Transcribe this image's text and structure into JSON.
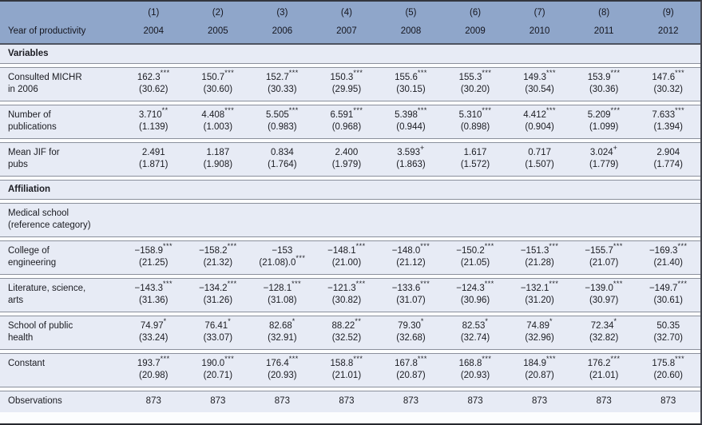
{
  "colors": {
    "header_bg": "#8fa6ca",
    "row_bg": "#e7ebf5",
    "border_dark": "#33363e",
    "separator": "#8b909c",
    "text": "#15161f"
  },
  "header": {
    "numbers": [
      "(1)",
      "(2)",
      "(3)",
      "(4)",
      "(5)",
      "(6)",
      "(7)",
      "(8)",
      "(9)"
    ],
    "label": "Year of productivity",
    "years": [
      "2004",
      "2005",
      "2006",
      "2007",
      "2008",
      "2009",
      "2010",
      "2011",
      "2012"
    ]
  },
  "rows": [
    {
      "type": "section",
      "name": "variables",
      "label": [
        "Variables"
      ]
    },
    {
      "type": "data",
      "name": "consulted-michr-in-2006",
      "label": [
        "Consulted MICHR",
        "in 2006"
      ],
      "cells": [
        [
          "162.3",
          "***",
          "(30.62)",
          ""
        ],
        [
          "150.7",
          "***",
          "(30.60)",
          ""
        ],
        [
          "152.7",
          "***",
          "(30.33)",
          ""
        ],
        [
          "150.3",
          "***",
          "(29.95)",
          ""
        ],
        [
          "155.6",
          "***",
          "(30.15)",
          ""
        ],
        [
          "155.3",
          "***",
          "(30.20)",
          ""
        ],
        [
          "149.3",
          "***",
          "(30.54)",
          ""
        ],
        [
          "153.9",
          "***",
          "(30.36)",
          ""
        ],
        [
          "147.6",
          "***",
          "(30.32)",
          ""
        ]
      ]
    },
    {
      "type": "data",
      "name": "number-of-publications",
      "label": [
        "Number of",
        "publications"
      ],
      "cells": [
        [
          "3.710",
          "**",
          "(1.139)",
          ""
        ],
        [
          "4.408",
          "***",
          "(1.003)",
          ""
        ],
        [
          "5.505",
          "***",
          "(0.983)",
          ""
        ],
        [
          "6.591",
          "***",
          "(0.968)",
          ""
        ],
        [
          "5.398",
          "***",
          "(0.944)",
          ""
        ],
        [
          "5.310",
          "***",
          "(0.898)",
          ""
        ],
        [
          "4.412",
          "***",
          "(0.904)",
          ""
        ],
        [
          "5.209",
          "***",
          "(1.099)",
          ""
        ],
        [
          "7.633",
          "***",
          "(1.394)",
          ""
        ]
      ]
    },
    {
      "type": "data",
      "name": "mean-jif-for-pubs",
      "label": [
        "Mean JIF for",
        "pubs"
      ],
      "cells": [
        [
          "2.491",
          "",
          "(1.871)",
          ""
        ],
        [
          "1.187",
          "",
          "(1.908)",
          ""
        ],
        [
          "0.834",
          "",
          "(1.764)",
          ""
        ],
        [
          "2.400",
          "",
          "(1.979)",
          ""
        ],
        [
          "3.593",
          "+",
          "(1.863)",
          ""
        ],
        [
          "1.617",
          "",
          "(1.572)",
          ""
        ],
        [
          "0.717",
          "",
          "(1.507)",
          ""
        ],
        [
          "3.024",
          "+",
          "(1.779)",
          ""
        ],
        [
          "2.904",
          "",
          "(1.774)",
          ""
        ]
      ]
    },
    {
      "type": "section",
      "name": "affiliation",
      "label": [
        "Affiliation"
      ]
    },
    {
      "type": "data",
      "name": "medical-school-reference",
      "label": [
        "Medical school",
        "(reference category)"
      ],
      "cells": []
    },
    {
      "type": "data",
      "name": "college-of-engineering",
      "label": [
        "College of",
        "engineering"
      ],
      "cells": [
        [
          "−158.9",
          "***",
          "(21.25)",
          ""
        ],
        [
          "−158.2",
          "***",
          "(21.32)",
          ""
        ],
        [
          "−153",
          "",
          "(21.08).0",
          "***"
        ],
        [
          "−148.1",
          "***",
          "(21.00)",
          ""
        ],
        [
          "−148.0",
          "***",
          "(21.12)",
          ""
        ],
        [
          "−150.2",
          "***",
          "(21.05)",
          ""
        ],
        [
          "−151.3",
          "***",
          "(21.28)",
          ""
        ],
        [
          "−155.7",
          "***",
          "(21.07)",
          ""
        ],
        [
          "−169.3",
          "***",
          "(21.40)",
          ""
        ]
      ]
    },
    {
      "type": "data",
      "name": "literature-science-arts",
      "label": [
        "Literature, science,",
        "arts"
      ],
      "cells": [
        [
          "−143.3",
          "***",
          "(31.36)",
          ""
        ],
        [
          "−134.2",
          "***",
          "(31.26)",
          ""
        ],
        [
          "−128.1",
          "***",
          "(31.08)",
          ""
        ],
        [
          "−121.3",
          "***",
          "(30.82)",
          ""
        ],
        [
          "−133.6",
          "***",
          "(31.07)",
          ""
        ],
        [
          "−124.3",
          "***",
          "(30.96)",
          ""
        ],
        [
          "−132.1",
          "***",
          "(31.20)",
          ""
        ],
        [
          "−139.0",
          "***",
          "(30.97)",
          ""
        ],
        [
          "−149.7",
          "***",
          "(30.61)",
          ""
        ]
      ]
    },
    {
      "type": "data",
      "name": "school-of-public-health",
      "label": [
        "School of public",
        "health"
      ],
      "cells": [
        [
          "74.97",
          "*",
          "(33.24)",
          ""
        ],
        [
          "76.41",
          "*",
          "(33.07)",
          ""
        ],
        [
          "82.68",
          "*",
          "(32.91)",
          ""
        ],
        [
          "88.22",
          "**",
          "(32.52)",
          ""
        ],
        [
          "79.30",
          "*",
          "(32.68)",
          ""
        ],
        [
          "82.53",
          "*",
          "(32.74)",
          ""
        ],
        [
          "74.89",
          "*",
          "(32.96)",
          ""
        ],
        [
          "72.34",
          "*",
          "(32.82)",
          ""
        ],
        [
          "50.35",
          "",
          "(32.70)",
          ""
        ]
      ]
    },
    {
      "type": "data",
      "name": "constant",
      "label": [
        "Constant"
      ],
      "cells": [
        [
          "193.7",
          "***",
          "(20.98)",
          ""
        ],
        [
          "190.0",
          "***",
          "(20.71)",
          ""
        ],
        [
          "176.4",
          "***",
          "(20.93)",
          ""
        ],
        [
          "158.8",
          "***",
          "(21.01)",
          ""
        ],
        [
          "167.8",
          "***",
          "(20.87)",
          ""
        ],
        [
          "168.8",
          "***",
          "(20.93)",
          ""
        ],
        [
          "184.9",
          "***",
          "(20.87)",
          ""
        ],
        [
          "176.2",
          "***",
          "(21.01)",
          ""
        ],
        [
          "175.8",
          "***",
          "(20.60)",
          ""
        ]
      ]
    },
    {
      "type": "data",
      "name": "observations",
      "label": [
        "Observations"
      ],
      "cells": [
        [
          "873",
          "",
          "",
          ""
        ],
        [
          "873",
          "",
          "",
          ""
        ],
        [
          "873",
          "",
          "",
          ""
        ],
        [
          "873",
          "",
          "",
          ""
        ],
        [
          "873",
          "",
          "",
          ""
        ],
        [
          "873",
          "",
          "",
          ""
        ],
        [
          "873",
          "",
          "",
          ""
        ],
        [
          "873",
          "",
          "",
          ""
        ],
        [
          "873",
          "",
          "",
          ""
        ]
      ]
    }
  ]
}
